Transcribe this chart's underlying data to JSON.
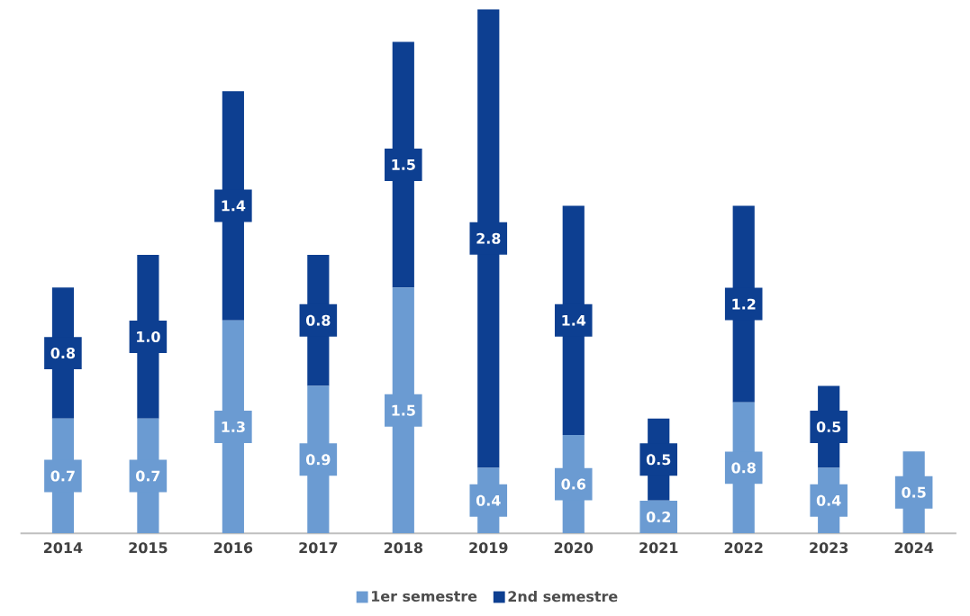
{
  "chart_data": {
    "type": "bar",
    "stacked": true,
    "legend": "bottom",
    "categories": [
      "2014",
      "2015",
      "2016",
      "2017",
      "2018",
      "2019",
      "2020",
      "2021",
      "2022",
      "2023",
      "2024"
    ],
    "series": [
      {
        "name": "1er semestre",
        "color": "#6b9bd2",
        "values": [
          0.7,
          0.7,
          1.3,
          0.9,
          1.5,
          0.4,
          0.6,
          0.2,
          0.8,
          0.4,
          0.5
        ],
        "value_labels": [
          "0.7",
          "0.7",
          "1.3",
          "0.9",
          "1.5",
          "0.4",
          "0.6",
          "0.2",
          "0.8",
          "0.4",
          "0.5"
        ]
      },
      {
        "name": "2nd semestre",
        "color": "#0d3f91",
        "values": [
          0.8,
          1.0,
          1.4,
          0.8,
          1.5,
          2.8,
          1.4,
          0.5,
          1.2,
          0.5,
          null
        ],
        "value_labels": [
          "0.8",
          "1.0",
          "1.4",
          "0.8",
          "1.5",
          "2.8",
          "1.4",
          "0.5",
          "1.2",
          "0.5",
          null
        ]
      }
    ]
  }
}
